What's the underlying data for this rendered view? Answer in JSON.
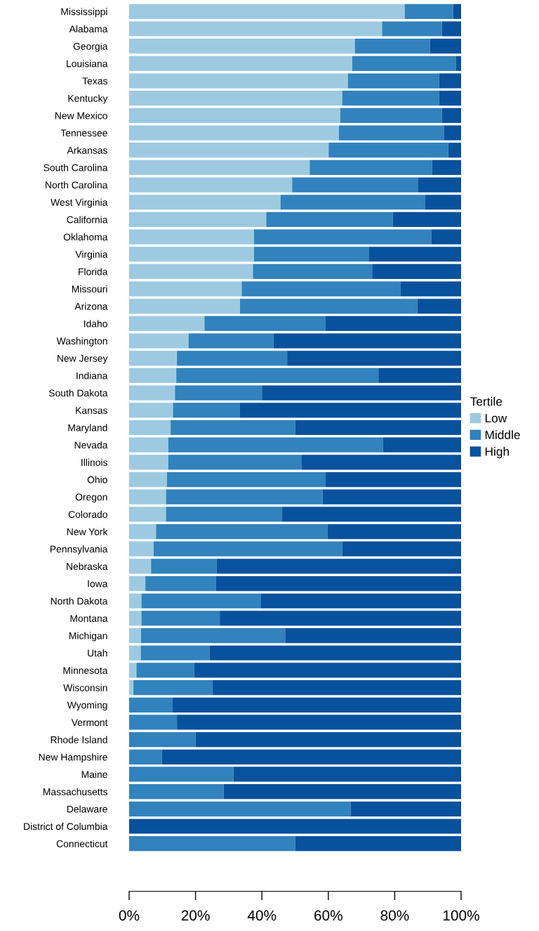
{
  "chart_data": {
    "type": "bar",
    "orientation": "horizontal",
    "stacked": true,
    "legend": "right",
    "legend_title": "Tertile",
    "grid": false,
    "categories": [
      "Mississippi",
      "Alabama",
      "Georgia",
      "Louisiana",
      "Texas",
      "Kentucky",
      "New Mexico",
      "Tennessee",
      "Arkansas",
      "South Carolina",
      "North Carolina",
      "West Virginia",
      "California",
      "Oklahoma",
      "Virginia",
      "Florida",
      "Missouri",
      "Arizona",
      "Idaho",
      "Washington",
      "New Jersey",
      "Indiana",
      "South Dakota",
      "Kansas",
      "Maryland",
      "Nevada",
      "Illinois",
      "Ohio",
      "Oregon",
      "Colorado",
      "New York",
      "Pennsylvania",
      "Nebraska",
      "Iowa",
      "North Dakota",
      "Montana",
      "Michigan",
      "Utah",
      "Minnesota",
      "Wisconsin",
      "Wyoming",
      "Vermont",
      "Rhode Island",
      "New Hampshire",
      "Maine",
      "Massachusetts",
      "Delaware",
      "District of Columbia",
      "Connecticut"
    ],
    "series": [
      {
        "name": "Low",
        "color": "#9ecae1",
        "values": [
          83.0,
          76.2,
          68.0,
          67.2,
          65.9,
          64.2,
          63.6,
          63.2,
          60.1,
          54.4,
          49.1,
          45.6,
          41.3,
          37.6,
          37.6,
          37.3,
          33.9,
          33.4,
          22.7,
          17.9,
          14.4,
          14.2,
          13.8,
          13.2,
          12.5,
          11.8,
          11.8,
          11.4,
          11.1,
          11.1,
          8.1,
          7.4,
          6.6,
          4.9,
          3.7,
          3.7,
          3.6,
          3.5,
          2.2,
          1.3,
          0,
          0,
          0,
          0,
          0,
          0,
          0,
          0,
          0
        ]
      },
      {
        "name": "Middle",
        "color": "#3182bd",
        "values": [
          14.6,
          18.0,
          22.6,
          31.3,
          27.5,
          29.2,
          30.6,
          31.7,
          36.0,
          36.9,
          38.0,
          43.6,
          38.1,
          53.4,
          34.7,
          35.9,
          47.9,
          53.4,
          36.5,
          25.6,
          33.2,
          60.9,
          26.2,
          20.2,
          37.5,
          64.7,
          40.2,
          47.8,
          47.2,
          35.0,
          51.7,
          56.8,
          19.8,
          21.3,
          35.9,
          23.6,
          43.4,
          20.7,
          17.4,
          23.8,
          13.1,
          14.4,
          20.0,
          9.9,
          31.4,
          28.5,
          66.7,
          0,
          50.0
        ]
      },
      {
        "name": "High",
        "color": "#08519c",
        "values": [
          2.4,
          5.8,
          9.4,
          1.5,
          6.6,
          6.6,
          5.8,
          5.1,
          3.9,
          8.7,
          12.9,
          10.8,
          20.6,
          9.0,
          27.7,
          26.8,
          18.2,
          13.2,
          40.8,
          56.5,
          52.4,
          24.9,
          60.0,
          66.6,
          50.0,
          23.5,
          48.0,
          40.8,
          41.7,
          53.9,
          40.2,
          35.8,
          73.6,
          73.8,
          60.4,
          72.7,
          53.0,
          75.8,
          80.4,
          74.9,
          86.9,
          85.6,
          80.0,
          90.1,
          68.6,
          71.5,
          33.3,
          100,
          50.0
        ]
      }
    ],
    "xlim": [
      0,
      100
    ],
    "xticks": [
      {
        "value": 0,
        "label": "0%"
      },
      {
        "value": 20,
        "label": "20%"
      },
      {
        "value": 40,
        "label": "40%"
      },
      {
        "value": 60,
        "label": "60%"
      },
      {
        "value": 80,
        "label": "80%"
      },
      {
        "value": 100,
        "label": "100%"
      }
    ]
  }
}
